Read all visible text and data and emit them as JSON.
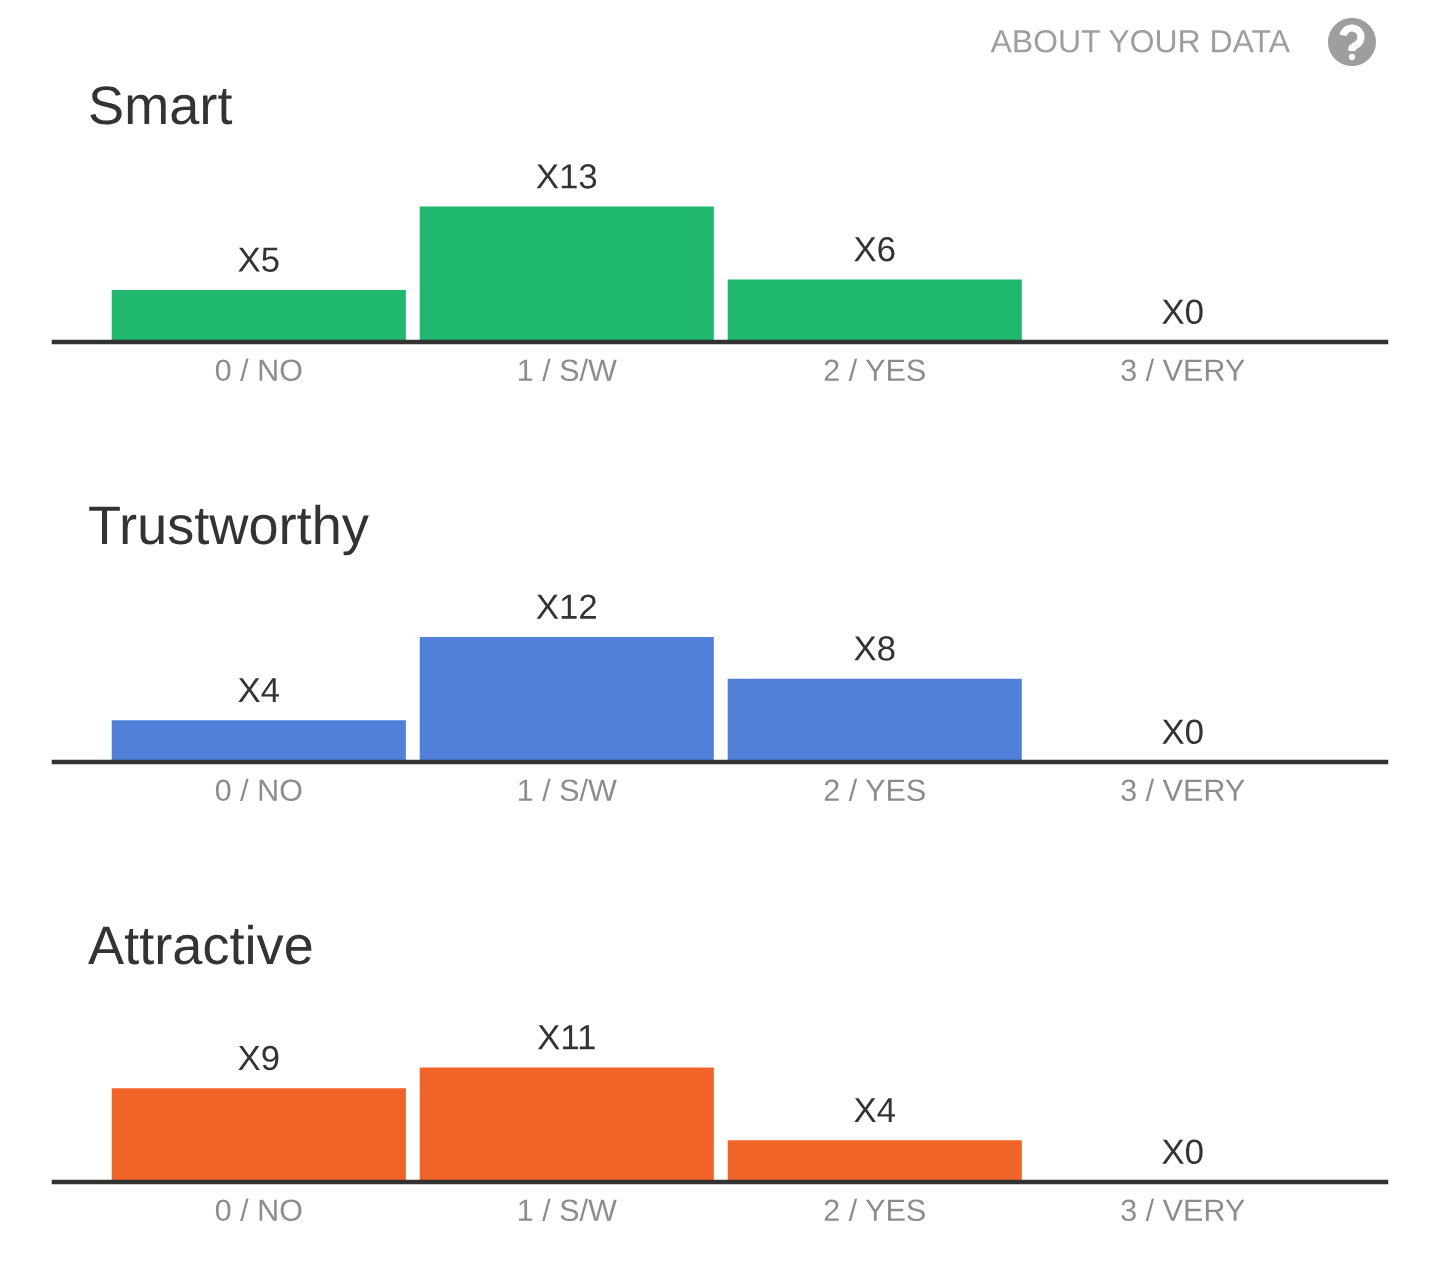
{
  "chart_data": [
    {
      "type": "bar",
      "title": "Smart",
      "categories": [
        "0 / NO",
        "1 / S/W",
        "2 / YES",
        "3 / VERY"
      ],
      "values": [
        5,
        13,
        6,
        0
      ],
      "value_labels": [
        "X5",
        "X13",
        "X6",
        "X0"
      ],
      "color": "#20b86e",
      "annotations": [
        "ABOUT YOUR DATA"
      ]
    },
    {
      "type": "bar",
      "title": "Trustworthy",
      "categories": [
        "0 / NO",
        "1 / S/W",
        "2 / YES",
        "3 / VERY"
      ],
      "values": [
        4,
        12,
        8,
        0
      ],
      "value_labels": [
        "X4",
        "X12",
        "X8",
        "X0"
      ],
      "color": "#5080d8"
    },
    {
      "type": "bar",
      "title": "Attractive",
      "categories": [
        "0 / NO",
        "1 / S/W",
        "2 / YES",
        "3 / VERY"
      ],
      "values": [
        9,
        11,
        4,
        0
      ],
      "value_labels": [
        "X9",
        "X11",
        "X4",
        "X0"
      ],
      "color": "#f06428"
    }
  ]
}
